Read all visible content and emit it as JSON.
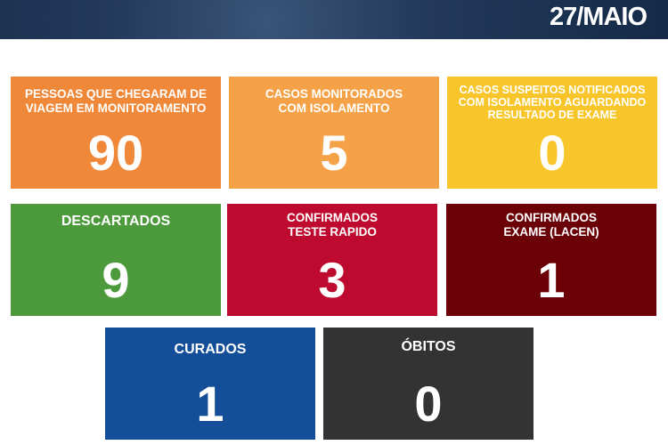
{
  "header": {
    "date": "27/MAIO"
  },
  "cards": [
    {
      "label": "PESSOAS QUE CHEGARAM DE VIAGEM EM MONITORAMENTO",
      "value": "90",
      "color": "#F0883A"
    },
    {
      "label": "CASOS MONITORADOS COM ISOLAMENTO",
      "value": "5",
      "color": "#F5A147"
    },
    {
      "label": "CASOS SUSPEITOS NOTIFICADOS COM ISOLAMENTO AGUARDANDO RESULTADO DE EXAME",
      "value": "0",
      "color": "#F8C62B"
    },
    {
      "label": "DESCARTADOS",
      "value": "9",
      "color": "#4C9A3C"
    },
    {
      "label": "CONFIRMADOS TESTE RAPIDO",
      "value": "3",
      "color": "#BE0A2E"
    },
    {
      "label": "CONFIRMADOS EXAME (LACEN)",
      "value": "1",
      "color": "#6B0006"
    },
    {
      "label": "CURADOS",
      "value": "1",
      "color": "#154E98"
    },
    {
      "label": "ÓBITOS",
      "value": "0",
      "color": "#333333"
    }
  ]
}
